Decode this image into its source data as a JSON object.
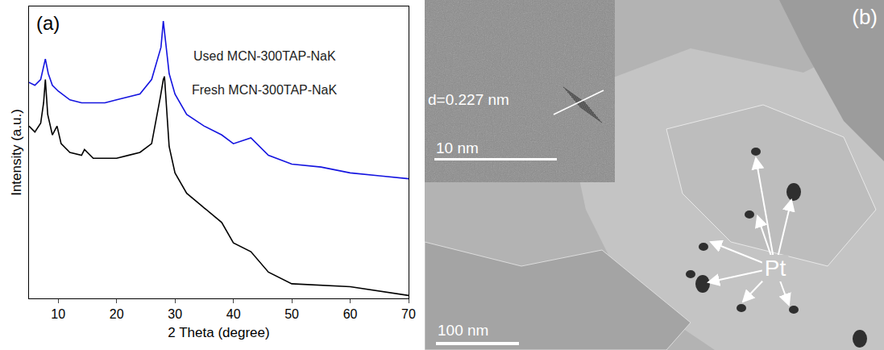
{
  "chart_data": {
    "type": "line",
    "panel_label": "(a)",
    "x_label": "2 Theta (degree)",
    "y_label": "Intensity (a.u.)",
    "xlim": [
      5,
      70
    ],
    "xticks": [
      10,
      20,
      30,
      40,
      50,
      60,
      70
    ],
    "ylim": [
      0,
      100
    ],
    "tick_labels": "x",
    "grid": false,
    "series": [
      {
        "name": "Used MCN-300TAP-NaK",
        "color": "#1414e0",
        "x": [
          5,
          6,
          7,
          7.8,
          8.3,
          9,
          10,
          12,
          14,
          16,
          18,
          20,
          22,
          24,
          26,
          27,
          27.6,
          28,
          28.3,
          29,
          30,
          32,
          35,
          38,
          40,
          43,
          46,
          50,
          55,
          60,
          65,
          70
        ],
        "values": [
          74,
          73,
          75,
          82,
          77,
          73,
          71,
          68,
          67,
          67,
          67,
          68,
          69,
          70,
          75,
          82,
          86,
          95,
          89,
          77,
          70,
          63,
          59,
          56,
          53,
          55,
          49,
          46,
          45,
          43,
          42,
          41
        ]
      },
      {
        "name": "Fresh MCN-300TAP-NaK",
        "color": "#000000",
        "x": [
          5,
          6,
          7,
          7.5,
          7.8,
          8.2,
          9,
          9.8,
          10.5,
          12,
          14,
          14.5,
          16,
          18,
          20,
          22,
          24,
          26,
          27,
          27.5,
          28,
          28.2,
          28.5,
          29,
          30,
          32,
          35,
          38,
          40,
          43,
          46,
          50,
          60,
          70
        ],
        "values": [
          59,
          57,
          60,
          67,
          75,
          63,
          56,
          59,
          53,
          50,
          49,
          51,
          48,
          48,
          48,
          49,
          50,
          53,
          63,
          69,
          75,
          76,
          67,
          52,
          43,
          36,
          31,
          26,
          19,
          16,
          9,
          5,
          4,
          1
        ]
      }
    ]
  },
  "image_panel": {
    "panel_label": "(b)",
    "inset_text": "d=0.227 nm",
    "inset_scale_bar": "10 nm",
    "scale_bar": "100 nm",
    "particle_label": "Pt"
  }
}
